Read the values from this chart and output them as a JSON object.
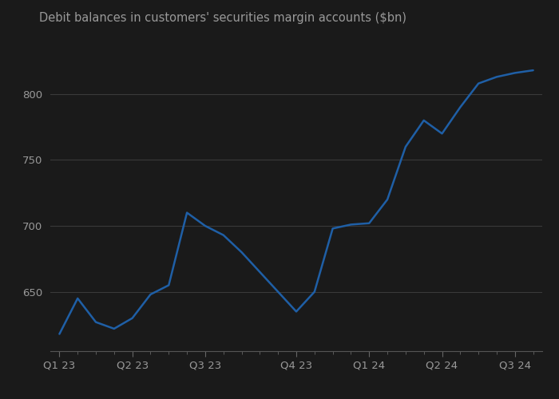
{
  "title": "Debit balances in customers' securities margin accounts ($bn)",
  "x_labels": [
    "Q1 23",
    "Q2 23",
    "Q3 23",
    "Q4 23",
    "Q1 24",
    "Q2 24",
    "Q3 24"
  ],
  "data_x": [
    0,
    1,
    2,
    3,
    4,
    5,
    6,
    7,
    8,
    9,
    10,
    11,
    12,
    13,
    14,
    15,
    16,
    17,
    18,
    19,
    20,
    21,
    22,
    23,
    24,
    25,
    26
  ],
  "data_y": [
    618,
    645,
    627,
    622,
    630,
    648,
    655,
    710,
    700,
    693,
    680,
    665,
    650,
    635,
    650,
    698,
    701,
    702,
    720,
    760,
    780,
    770,
    790,
    808,
    813,
    816,
    818
  ],
  "x_tick_positions": [
    0,
    4,
    8,
    13,
    17,
    21,
    25
  ],
  "line_color": "#1f5fa6",
  "background_color": "#1a1a1a",
  "plot_bg_color": "#1a1a1a",
  "title_color": "#999999",
  "tick_color": "#999999",
  "grid_color": "#3a3a3a",
  "yticks": [
    650,
    700,
    750,
    800
  ],
  "ylim": [
    605,
    835
  ],
  "xlim": [
    -0.5,
    26.5
  ],
  "title_fontsize": 10.5,
  "tick_fontsize": 9.5,
  "line_width": 1.8
}
